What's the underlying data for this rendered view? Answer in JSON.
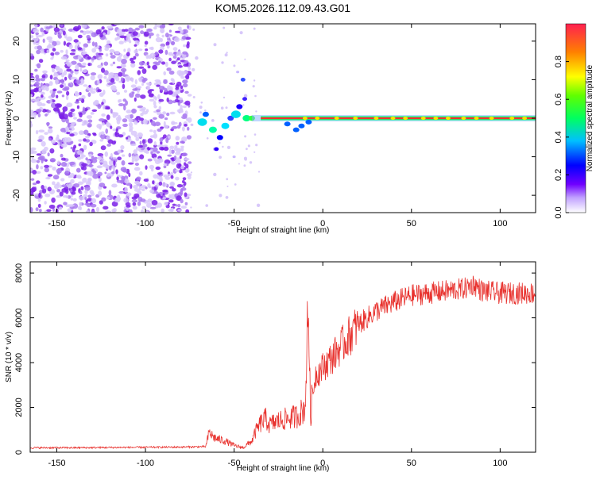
{
  "title": "KOM5.2026.112.09.43.G01",
  "colors": {
    "spectrum_scatter": "#8a2be2",
    "snr_line": "#e8322e",
    "axis": "#000000"
  },
  "chart_data": [
    {
      "type": "heatmap",
      "name": "spectrogram",
      "xlabel": "Height of straight line (km)",
      "ylabel": "Frequency (Hz)",
      "xlim": [
        -165,
        120
      ],
      "ylim": [
        -24.5,
        24.5
      ],
      "xticks": [
        -150,
        -100,
        -50,
        0,
        50,
        100
      ],
      "yticks": [
        -20,
        -10,
        0,
        10,
        20
      ],
      "description_points": {
        "noise_region_x": [
          -165,
          -75
        ],
        "signal_onset_x": -75,
        "carrier_frequency_hz": 0,
        "max_amplitude_region_x": [
          -35,
          120
        ]
      },
      "colorbar": {
        "label": "Normalized spectral amplitude",
        "range": [
          0,
          1
        ],
        "ticks": [
          "0.0",
          "0.2",
          "0.4",
          "0.6",
          "0.8"
        ],
        "tick_values": [
          0,
          0.2,
          0.4,
          0.6,
          0.8
        ]
      }
    },
    {
      "type": "line",
      "name": "snr",
      "xlabel": "Height of straight line (km)",
      "ylabel": "SNR (10 * v/v)",
      "xlim": [
        -165,
        120
      ],
      "ylim": [
        0,
        8500
      ],
      "xticks": [
        -150,
        -100,
        -50,
        0,
        50,
        100
      ],
      "yticks": [
        0,
        2000,
        4000,
        6000,
        8000
      ],
      "series": [
        {
          "name": "SNR",
          "x": [
            -165,
            -140,
            -120,
            -100,
            -80,
            -66,
            -64,
            -62,
            -60,
            -55,
            -50,
            -45,
            -40,
            -38,
            -35,
            -32,
            -30,
            -28,
            -25,
            -20,
            -15,
            -12,
            -10,
            -9,
            -8,
            -7,
            -6,
            -5,
            -4,
            -2,
            0,
            5,
            10,
            15,
            20,
            25,
            30,
            40,
            50,
            60,
            70,
            80,
            85,
            90,
            100,
            110,
            120
          ],
          "values": [
            200,
            200,
            210,
            220,
            230,
            250,
            900,
            700,
            600,
            500,
            300,
            200,
            500,
            900,
            1300,
            1500,
            1200,
            1300,
            1400,
            1500,
            1600,
            1800,
            2000,
            4500,
            6800,
            1500,
            2500,
            3000,
            3500,
            3600,
            3800,
            4200,
            4700,
            5200,
            5700,
            6000,
            6300,
            6700,
            7000,
            7100,
            7200,
            7300,
            7500,
            7200,
            7100,
            7100,
            7100
          ]
        }
      ]
    }
  ]
}
